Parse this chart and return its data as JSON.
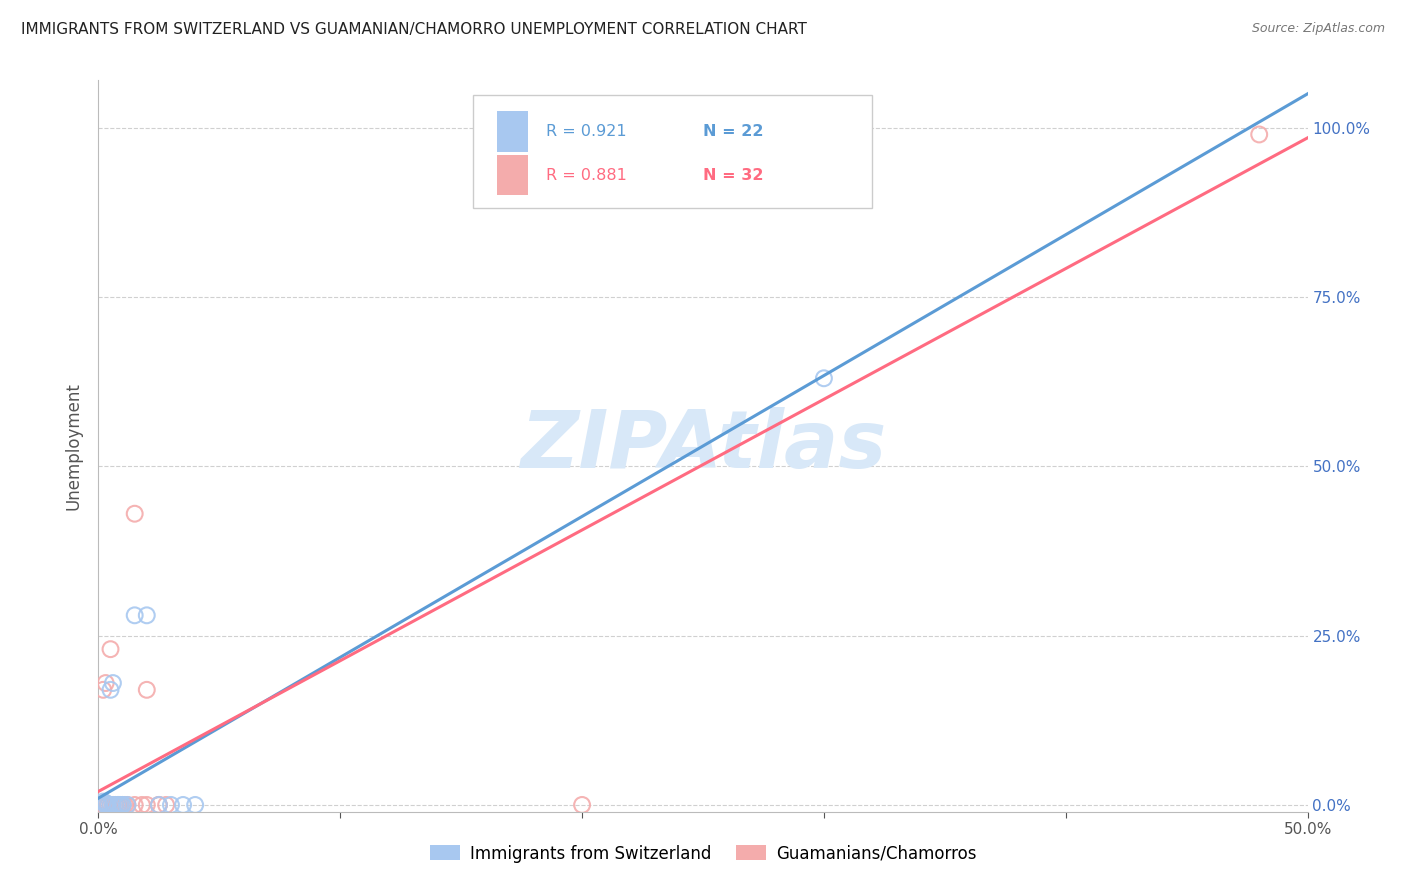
{
  "title": "IMMIGRANTS FROM SWITZERLAND VS GUAMANIAN/CHAMORRO UNEMPLOYMENT CORRELATION CHART",
  "source": "Source: ZipAtlas.com",
  "ylabel": "Unemployment",
  "xlim": [
    0,
    0.5
  ],
  "ylim": [
    -0.01,
    1.07
  ],
  "legend_blue_R": "R = 0.921",
  "legend_blue_N": "N = 22",
  "legend_pink_R": "R = 0.881",
  "legend_pink_N": "N = 32",
  "legend_blue_label": "Immigrants from Switzerland",
  "legend_pink_label": "Guamanians/Chamorros",
  "blue_color": "#A8C8F0",
  "pink_color": "#F4ACAC",
  "blue_line_color": "#5B9BD5",
  "pink_line_color": "#FF6B81",
  "watermark": "ZIPAtlas",
  "watermark_color": "#D8E8F8",
  "blue_scatter_x": [
    0.0,
    0.002,
    0.003,
    0.004,
    0.005,
    0.006,
    0.007,
    0.008,
    0.009,
    0.01,
    0.01,
    0.012,
    0.015,
    0.02,
    0.025,
    0.03,
    0.035,
    0.04,
    0.005,
    0.006,
    0.3,
    0.003
  ],
  "blue_scatter_y": [
    0.0,
    0.005,
    0.003,
    0.0,
    0.17,
    0.18,
    0.0,
    0.0,
    0.0,
    0.0,
    0.0,
    0.0,
    0.28,
    0.28,
    0.0,
    0.0,
    0.0,
    0.0,
    0.0,
    0.0,
    0.63,
    0.0
  ],
  "pink_scatter_x": [
    0.0,
    0.001,
    0.002,
    0.003,
    0.004,
    0.005,
    0.006,
    0.007,
    0.008,
    0.009,
    0.01,
    0.011,
    0.012,
    0.015,
    0.02,
    0.025,
    0.0,
    0.001,
    0.002,
    0.003,
    0.004,
    0.005,
    0.007,
    0.008,
    0.01,
    0.015,
    0.02,
    0.018,
    0.025,
    0.028,
    0.2,
    0.48
  ],
  "pink_scatter_y": [
    0.0,
    0.0,
    0.0,
    0.0,
    0.0,
    0.0,
    0.0,
    0.0,
    0.0,
    0.0,
    0.0,
    0.0,
    0.0,
    0.43,
    0.0,
    0.0,
    0.0,
    0.0,
    0.17,
    0.18,
    0.0,
    0.23,
    0.0,
    0.0,
    0.0,
    0.0,
    0.17,
    0.0,
    0.0,
    0.0,
    0.0,
    0.99
  ],
  "blue_line_slope": 2.08,
  "blue_line_intercept": 0.01,
  "pink_line_slope": 1.93,
  "pink_line_intercept": 0.02,
  "title_fontsize": 11,
  "source_fontsize": 9,
  "axis_tick_color_right": "#4472C4",
  "background_color": "#FFFFFF",
  "grid_color": "#D0D0D0",
  "grid_linestyle": "--",
  "grid_linewidth": 0.8,
  "yticks": [
    0.0,
    0.25,
    0.5,
    0.75,
    1.0
  ],
  "ytick_labels_right": [
    "0.0%",
    "25.0%",
    "50.0%",
    "75.0%",
    "100.0%"
  ]
}
